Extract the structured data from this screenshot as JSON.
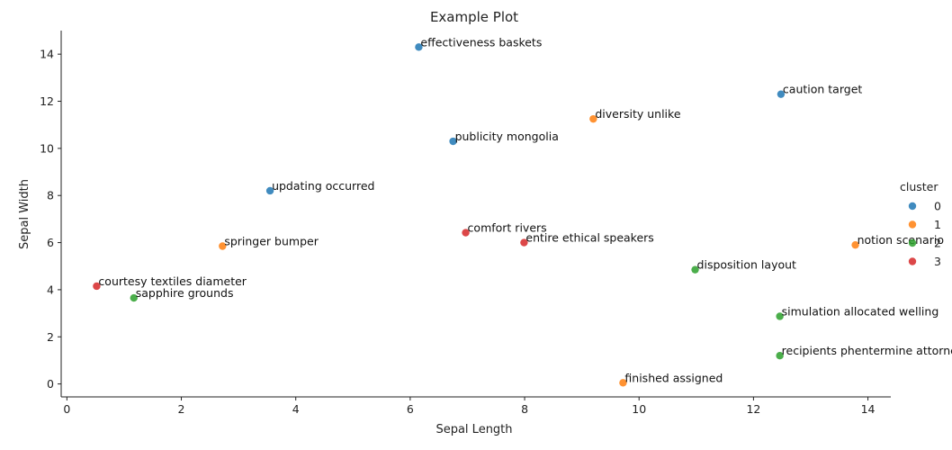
{
  "chart_data": {
    "type": "scatter",
    "title": "Example Plot",
    "xlabel": "Sepal Length",
    "ylabel": "Sepal Width",
    "xlim": [
      -0.1,
      14.4
    ],
    "ylim": [
      -0.55,
      15.0
    ],
    "xticks": [
      0,
      2,
      4,
      6,
      8,
      10,
      12,
      14
    ],
    "yticks": [
      0,
      2,
      4,
      6,
      8,
      10,
      12,
      14
    ],
    "grid": false,
    "legend": {
      "title": "cluster",
      "placement": "right"
    },
    "series": [
      {
        "name": "0",
        "color": "#1f77b4",
        "points": [
          {
            "x": 6.15,
            "y": 14.3,
            "label": "effectiveness baskets"
          },
          {
            "x": 12.48,
            "y": 12.3,
            "label": "caution target"
          },
          {
            "x": 6.75,
            "y": 10.3,
            "label": "publicity mongolia"
          },
          {
            "x": 3.55,
            "y": 8.2,
            "label": "updating occurred"
          }
        ]
      },
      {
        "name": "1",
        "color": "#ff7f0e",
        "points": [
          {
            "x": 9.2,
            "y": 11.25,
            "label": "diversity unlike"
          },
          {
            "x": 2.72,
            "y": 5.85,
            "label": "springer bumper"
          },
          {
            "x": 13.78,
            "y": 5.9,
            "label": "notion scenario"
          },
          {
            "x": 9.72,
            "y": 0.05,
            "label": "finished assigned"
          }
        ]
      },
      {
        "name": "2",
        "color": "#2ca02c",
        "points": [
          {
            "x": 10.98,
            "y": 4.85,
            "label": "disposition layout"
          },
          {
            "x": 1.17,
            "y": 3.65,
            "label": "sapphire grounds"
          },
          {
            "x": 12.46,
            "y": 2.87,
            "label": "simulation allocated welling"
          },
          {
            "x": 12.46,
            "y": 1.2,
            "label": "recipients phentermine attorneys"
          }
        ]
      },
      {
        "name": "3",
        "color": "#d62728",
        "points": [
          {
            "x": 6.97,
            "y": 6.42,
            "label": "comfort rivers"
          },
          {
            "x": 7.99,
            "y": 6.0,
            "label": "entire ethical speakers"
          },
          {
            "x": 0.52,
            "y": 4.15,
            "label": "courtesy textiles diameter"
          }
        ]
      }
    ]
  }
}
